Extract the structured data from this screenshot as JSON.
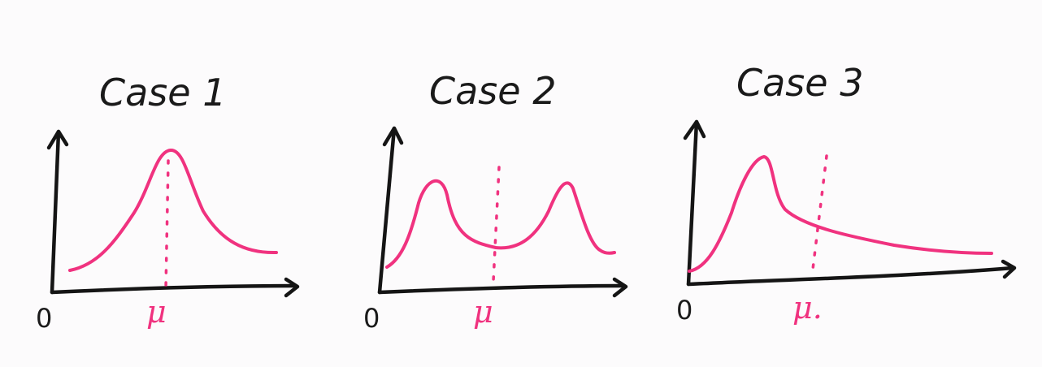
{
  "colors": {
    "ink": "#151515",
    "accent": "#f0327f",
    "background": "#fcfbfc"
  },
  "panels": [
    {
      "title": "Case 1",
      "origin": "0",
      "mean_label": "μ"
    },
    {
      "title": "Case 2",
      "origin": "0",
      "mean_label": "μ"
    },
    {
      "title": "Case 3",
      "origin": "0",
      "mean_label": "μ."
    }
  ]
}
